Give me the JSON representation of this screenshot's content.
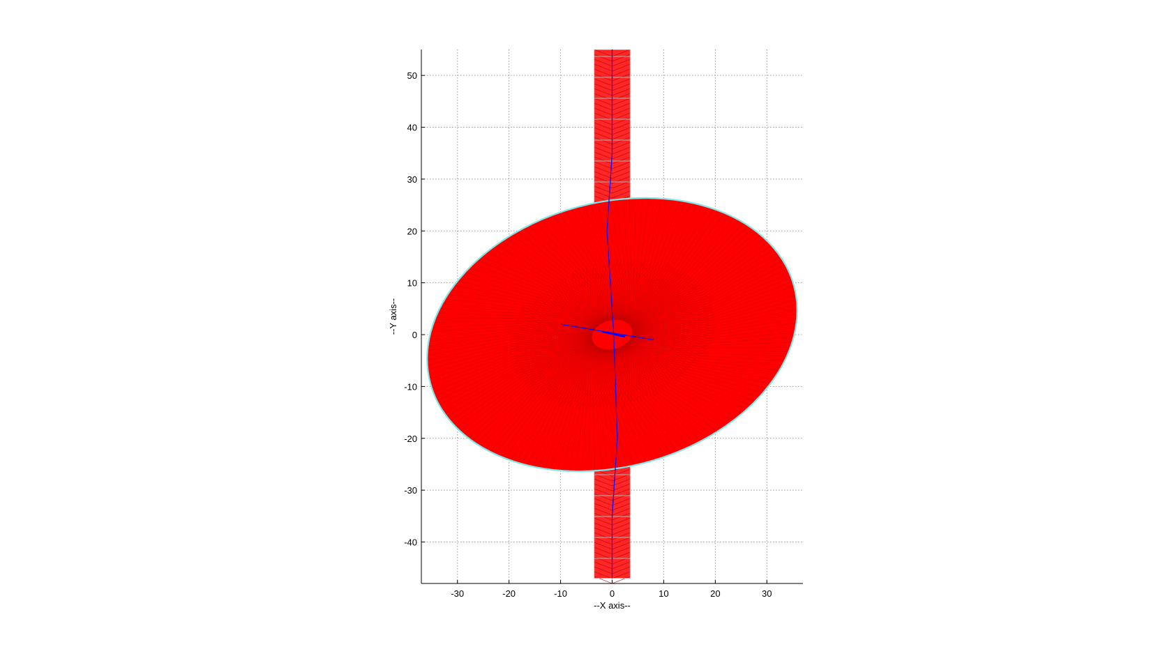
{
  "chart_data": {
    "type": "scatter",
    "title": "",
    "xlabel": "--X axis--",
    "ylabel": "--Y axis--",
    "xlim": [
      -37,
      37
    ],
    "ylim": [
      -48,
      55
    ],
    "xticks": [
      -30,
      -20,
      -10,
      0,
      10,
      20,
      30
    ],
    "yticks": [
      -40,
      -30,
      -20,
      -10,
      0,
      10,
      20,
      30,
      40,
      50
    ],
    "grid": true,
    "colors": {
      "boundary": "#7fe7e7",
      "fill_lines": "#ff0000",
      "axis_lines": "#0000ff",
      "grid": "#9a9a9a"
    },
    "shapes": {
      "ellipse": {
        "cx": 0,
        "cy": 0,
        "rx": 36.5,
        "ry": 25.5
      },
      "shaft": {
        "x_min": -3.5,
        "x_max": 3.5,
        "y_min": -47,
        "y_max": 55
      }
    }
  }
}
